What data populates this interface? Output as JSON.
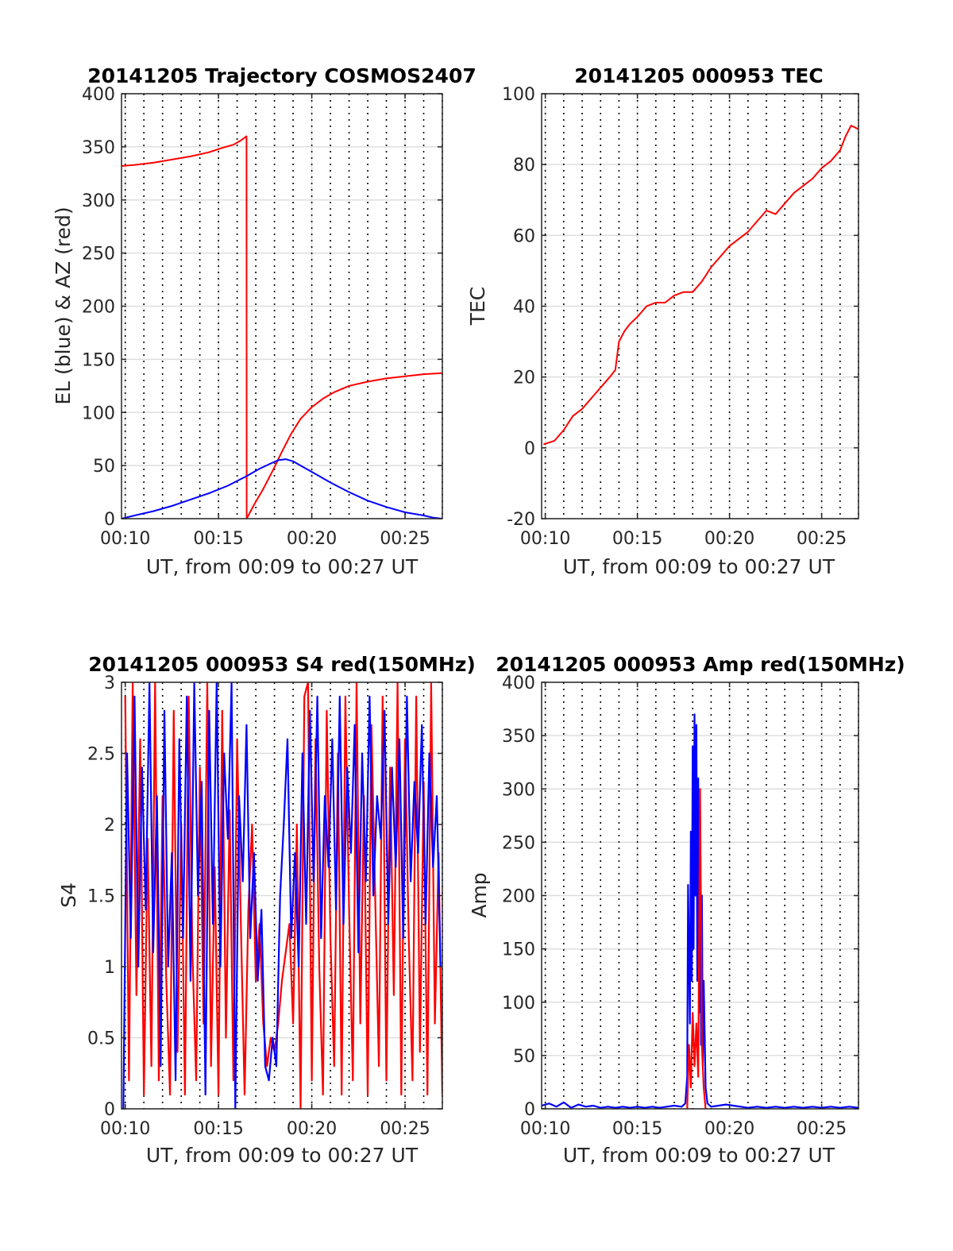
{
  "colors": {
    "red": "#ff0000",
    "blue": "#0000ff",
    "grid": "#dedede",
    "axis": "#262626"
  },
  "chart_data": [
    {
      "type": "line",
      "title": "20141205 Trajectory COSMOS2407",
      "xlabel": "UT, from 00:09 to 00:27 UT",
      "ylabel": "EL (blue) & AZ (red)",
      "xlim": [
        9.8,
        27.0
      ],
      "ylim": [
        0,
        400
      ],
      "xticks": [
        10,
        15,
        20,
        25
      ],
      "xtick_labels": [
        "00:10",
        "00:15",
        "00:20",
        "00:25"
      ],
      "yticks": [
        0,
        50,
        100,
        150,
        200,
        250,
        300,
        350,
        400
      ],
      "ytick_labels": [
        "0",
        "50",
        "100",
        "150",
        "200",
        "250",
        "300",
        "350",
        "400"
      ],
      "minor_dotted_step": 1,
      "grid": true,
      "series": [
        {
          "color": "#ff0000",
          "x": [
            9.8,
            10.5,
            11.5,
            12.5,
            13.5,
            14.5,
            15.2,
            15.8,
            16.2,
            16.5,
            16.51,
            16.9,
            17.4,
            17.9,
            18.4,
            18.9,
            19.4,
            20.0,
            20.6,
            21.2,
            22.0,
            23.0,
            24.0,
            25.0,
            26.0,
            27.0
          ],
          "y": [
            332,
            333,
            335,
            338,
            341,
            345,
            349,
            352,
            356,
            360,
            0,
            13,
            28,
            45,
            63,
            80,
            94,
            105,
            113,
            119,
            125,
            129,
            132,
            134,
            136,
            137
          ]
        },
        {
          "color": "#0000ff",
          "x": [
            9.8,
            10.5,
            11.5,
            12.5,
            13.5,
            14.5,
            15.5,
            16.5,
            17.2,
            17.8,
            18.2,
            18.6,
            19.0,
            19.5,
            20.2,
            21.0,
            22.0,
            23.0,
            24.0,
            25.0,
            26.0,
            26.5,
            27.0
          ],
          "y": [
            0,
            3,
            7,
            12,
            18,
            24,
            31,
            40,
            47,
            52,
            55,
            56,
            54,
            49,
            42,
            34,
            25,
            17,
            11,
            6,
            3,
            1,
            0
          ]
        }
      ]
    },
    {
      "type": "line",
      "title": "20141205 000953 TEC",
      "xlabel": "UT, from 00:09 to 00:27 UT",
      "ylabel": "TEC",
      "xlim": [
        9.8,
        27.0
      ],
      "ylim": [
        -20,
        100
      ],
      "xticks": [
        10,
        15,
        20,
        25
      ],
      "xtick_labels": [
        "00:10",
        "00:15",
        "00:20",
        "00:25"
      ],
      "yticks": [
        -20,
        0,
        20,
        40,
        60,
        80,
        100
      ],
      "ytick_labels": [
        "-20",
        "0",
        "20",
        "40",
        "60",
        "80",
        "100"
      ],
      "minor_dotted_step": 1,
      "grid": true,
      "series": [
        {
          "color": "#ff0000",
          "x": [
            9.9,
            10.5,
            11.0,
            11.5,
            12.0,
            12.5,
            13.0,
            13.5,
            13.8,
            14.0,
            14.3,
            14.6,
            15.0,
            15.5,
            16.0,
            16.5,
            17.0,
            17.5,
            18.0,
            18.5,
            19.0,
            19.5,
            20.0,
            20.5,
            21.0,
            21.5,
            22.0,
            22.5,
            23.0,
            23.5,
            24.0,
            24.5,
            25.0,
            25.5,
            26.0,
            26.3,
            26.6,
            27.0
          ],
          "y": [
            1,
            2,
            5,
            9,
            11,
            14,
            17,
            20,
            22,
            30,
            33,
            35,
            37,
            40,
            41,
            41,
            43,
            44,
            44,
            47,
            51,
            54,
            57,
            59,
            61,
            64,
            67,
            66,
            69,
            72,
            74,
            76,
            79,
            81,
            84,
            88,
            91,
            90
          ]
        }
      ]
    },
    {
      "type": "line",
      "title": "20141205 000953 S4 red(150MHz)",
      "xlabel": "UT, from 00:09 to 00:27 UT",
      "ylabel": "S4",
      "xlim": [
        9.8,
        27.0
      ],
      "ylim": [
        0,
        3
      ],
      "xticks": [
        10,
        15,
        20,
        25
      ],
      "xtick_labels": [
        "00:10",
        "00:15",
        "00:20",
        "00:25"
      ],
      "yticks": [
        0,
        0.5,
        1,
        1.5,
        2,
        2.5,
        3
      ],
      "ytick_labels": [
        "0",
        "0.5",
        "1",
        "1.5",
        "2",
        "2.5",
        "3"
      ],
      "minor_dotted_step": 1,
      "grid": true,
      "series": [
        {
          "color": "#ff0000",
          "x": [
            10.0,
            10.2,
            10.4,
            10.6,
            10.8,
            11.0,
            11.2,
            11.4,
            11.6,
            11.8,
            12.0,
            12.2,
            12.4,
            12.6,
            12.8,
            13.0,
            13.2,
            13.4,
            13.6,
            13.8,
            14.0,
            14.2,
            14.4,
            14.6,
            14.8,
            15.0,
            15.2,
            15.4,
            15.6,
            15.8,
            16.0,
            16.2,
            16.4,
            16.6,
            16.8,
            17.0,
            17.2,
            17.4,
            17.6,
            17.8,
            18.0,
            18.2,
            18.4,
            18.6,
            18.8,
            19.0,
            19.2,
            19.4,
            19.6,
            19.8,
            20.0,
            20.2,
            20.4,
            20.6,
            20.8,
            21.0,
            21.2,
            21.4,
            21.6,
            21.8,
            22.0,
            22.2,
            22.4,
            22.6,
            22.8,
            23.0,
            23.2,
            23.4,
            23.6,
            23.8,
            24.0,
            24.2,
            24.4,
            24.6,
            24.8,
            25.0,
            25.2,
            25.4,
            25.6,
            25.8,
            26.0,
            26.2,
            26.4,
            26.6,
            26.8,
            27.0
          ],
          "y": [
            2.9,
            0.2,
            3.0,
            0.8,
            2.6,
            0.1,
            1.9,
            0.3,
            3.0,
            0.2,
            2.2,
            0.9,
            0.1,
            2.8,
            0.4,
            2.0,
            0.1,
            2.9,
            1.1,
            0.2,
            2.4,
            0.6,
            3.0,
            0.3,
            1.7,
            0.1,
            2.8,
            0.5,
            2.1,
            0.2,
            2.6,
            1.3,
            0.1,
            1.4,
            2.0,
            0.9,
            1.3,
            0.6,
            0.3,
            0.5,
            0.4,
            0.6,
            0.9,
            1.1,
            1.3,
            0.6,
            2.0,
            0.0,
            2.9,
            3.0,
            0.2,
            2.6,
            1.0,
            0.1,
            2.8,
            1.2,
            0.3,
            2.5,
            0.1,
            2.9,
            1.4,
            0.2,
            3.0,
            0.6,
            2.2,
            0.1,
            2.7,
            1.5,
            0.3,
            2.9,
            0.2,
            2.4,
            0.8,
            3.0,
            0.1,
            2.6,
            1.2,
            0.2,
            2.9,
            0.4,
            2.3,
            0.1,
            3.0,
            0.6,
            1.8,
            0.1
          ]
        },
        {
          "color": "#0000ff",
          "x": [
            9.9,
            10.1,
            10.3,
            10.5,
            10.7,
            10.9,
            11.1,
            11.3,
            11.5,
            11.7,
            11.9,
            12.1,
            12.3,
            12.5,
            12.7,
            12.9,
            13.1,
            13.3,
            13.5,
            13.7,
            13.9,
            14.1,
            14.3,
            14.5,
            14.7,
            14.9,
            15.1,
            15.3,
            15.5,
            15.7,
            15.9,
            16.1,
            16.3,
            16.5,
            16.7,
            16.9,
            17.1,
            17.3,
            17.5,
            17.7,
            17.9,
            18.1,
            18.3,
            18.5,
            18.7,
            18.9,
            19.1,
            19.3,
            19.5,
            19.7,
            19.9,
            20.1,
            20.3,
            20.5,
            20.7,
            20.9,
            21.1,
            21.3,
            21.5,
            21.7,
            21.9,
            22.1,
            22.3,
            22.5,
            22.7,
            22.9,
            23.1,
            23.3,
            23.5,
            23.7,
            23.9,
            24.1,
            24.3,
            24.5,
            24.7,
            24.9,
            25.1,
            25.3,
            25.5,
            25.7,
            25.9,
            26.1,
            26.3,
            26.5,
            26.7,
            26.9
          ],
          "y": [
            0.0,
            2.5,
            1.2,
            2.9,
            1.0,
            2.4,
            1.4,
            3.0,
            1.1,
            2.2,
            0.3,
            2.8,
            1.0,
            1.8,
            0.2,
            2.6,
            1.2,
            2.9,
            0.9,
            3.0,
            1.5,
            2.3,
            0.1,
            2.8,
            1.3,
            3.0,
            1.0,
            2.5,
            1.9,
            3.0,
            0.0,
            2.2,
            1.6,
            2.7,
            1.2,
            1.8,
            0.9,
            1.4,
            0.3,
            0.2,
            0.5,
            0.3,
            1.5,
            2.0,
            2.6,
            1.2,
            1.8,
            1.0,
            2.5,
            1.3,
            2.8,
            1.6,
            2.9,
            1.2,
            2.2,
            1.7,
            2.6,
            1.4,
            2.9,
            1.3,
            2.4,
            1.8,
            2.7,
            1.1,
            2.5,
            1.6,
            2.9,
            1.5,
            2.2,
            1.9,
            2.8,
            1.3,
            2.4,
            1.7,
            2.6,
            1.2,
            2.9,
            1.6,
            2.3,
            1.8,
            2.7,
            1.3,
            2.5,
            1.7,
            2.2,
            1.0
          ]
        }
      ]
    },
    {
      "type": "line",
      "title": "20141205 000953 Amp red(150MHz)",
      "xlabel": "UT, from 00:09 to 00:27 UT",
      "ylabel": "Amp",
      "xlim": [
        9.8,
        27.0
      ],
      "ylim": [
        0,
        400
      ],
      "xticks": [
        10,
        15,
        20,
        25
      ],
      "xtick_labels": [
        "00:10",
        "00:15",
        "00:20",
        "00:25"
      ],
      "yticks": [
        0,
        50,
        100,
        150,
        200,
        250,
        300,
        350,
        400
      ],
      "ytick_labels": [
        "0",
        "50",
        "100",
        "150",
        "200",
        "250",
        "300",
        "350",
        "400"
      ],
      "minor_dotted_step": 1,
      "grid": true,
      "series": [
        {
          "color": "#0000ff",
          "x": [
            9.8,
            10.2,
            10.6,
            11.0,
            11.4,
            11.8,
            12.2,
            12.6,
            13.0,
            13.4,
            13.8,
            14.2,
            14.6,
            15.0,
            15.4,
            15.8,
            16.2,
            16.6,
            17.0,
            17.4,
            17.6,
            17.7,
            17.75,
            17.85,
            17.9,
            17.95,
            18.0,
            18.05,
            18.1,
            18.15,
            18.2,
            18.25,
            18.3,
            18.35,
            18.4,
            18.45,
            18.5,
            18.55,
            18.6,
            18.7,
            18.8,
            19.0,
            19.4,
            19.8,
            20.2,
            20.6,
            21.0,
            21.5,
            22.0,
            22.5,
            23.0,
            23.5,
            24.0,
            24.5,
            25.0,
            25.5,
            26.0,
            26.5,
            27.0
          ],
          "y": [
            3,
            5,
            2,
            6,
            1,
            4,
            2,
            3,
            1,
            2,
            1,
            2,
            1,
            2,
            1,
            2,
            1,
            2,
            3,
            2,
            5,
            30,
            210,
            80,
            260,
            120,
            340,
            150,
            370,
            200,
            360,
            120,
            310,
            90,
            280,
            60,
            200,
            40,
            120,
            20,
            5,
            2,
            3,
            4,
            3,
            2,
            1,
            2,
            1,
            2,
            1,
            2,
            1,
            2,
            1,
            2,
            1,
            2,
            1
          ]
        },
        {
          "color": "#ff0000",
          "x": [
            17.7,
            17.8,
            17.9,
            18.0,
            18.1,
            18.2,
            18.3,
            18.4,
            18.5,
            18.6,
            18.7
          ],
          "y": [
            0,
            60,
            20,
            90,
            40,
            80,
            30,
            300,
            60,
            20,
            0
          ]
        }
      ]
    }
  ]
}
